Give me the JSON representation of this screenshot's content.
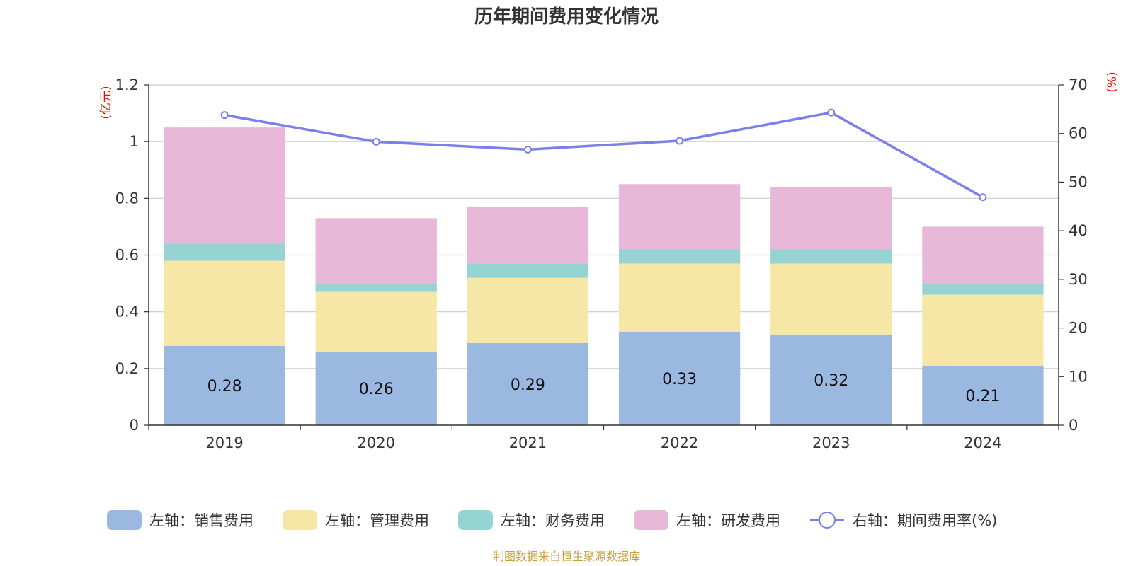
{
  "chart_data": {
    "type": "bar",
    "title": "历年期间费用变化情况",
    "categories": [
      "2019",
      "2020",
      "2021",
      "2022",
      "2023",
      "2024"
    ],
    "left_axis": {
      "unit": "(亿元)",
      "ylim": [
        0,
        1.2
      ],
      "ticks": [
        "0",
        "0.2",
        "0.4",
        "0.6",
        "0.8",
        "1",
        "1.2"
      ]
    },
    "right_axis": {
      "unit": "(%)",
      "ylim": [
        0,
        70
      ],
      "ticks": [
        "0",
        "10",
        "20",
        "30",
        "40",
        "50",
        "60",
        "70"
      ]
    },
    "series": [
      {
        "name": "左轴：销售费用",
        "color": "#9bb8e0",
        "values": [
          0.28,
          0.26,
          0.29,
          0.33,
          0.32,
          0.21
        ],
        "labels": [
          "0.28",
          "0.26",
          "0.29",
          "0.33",
          "0.32",
          "0.21"
        ]
      },
      {
        "name": "左轴：管理费用",
        "color": "#f7e7a6",
        "values": [
          0.3,
          0.21,
          0.23,
          0.24,
          0.25,
          0.25
        ]
      },
      {
        "name": "左轴：财务费用",
        "color": "#96d4d4",
        "values": [
          0.06,
          0.03,
          0.05,
          0.05,
          0.05,
          0.04
        ]
      },
      {
        "name": "左轴：研发费用",
        "color": "#e7b8d8",
        "values": [
          0.41,
          0.23,
          0.2,
          0.23,
          0.22,
          0.2
        ]
      }
    ],
    "line_series": {
      "name": "右轴：期间费用率(%)",
      "color": "#7a7fea",
      "values": [
        63.8,
        58.3,
        56.7,
        58.5,
        64.3,
        46.9
      ]
    },
    "legend_position": "bottom",
    "grid": true
  },
  "source_text": "制图数据来自恒生聚源数据库"
}
